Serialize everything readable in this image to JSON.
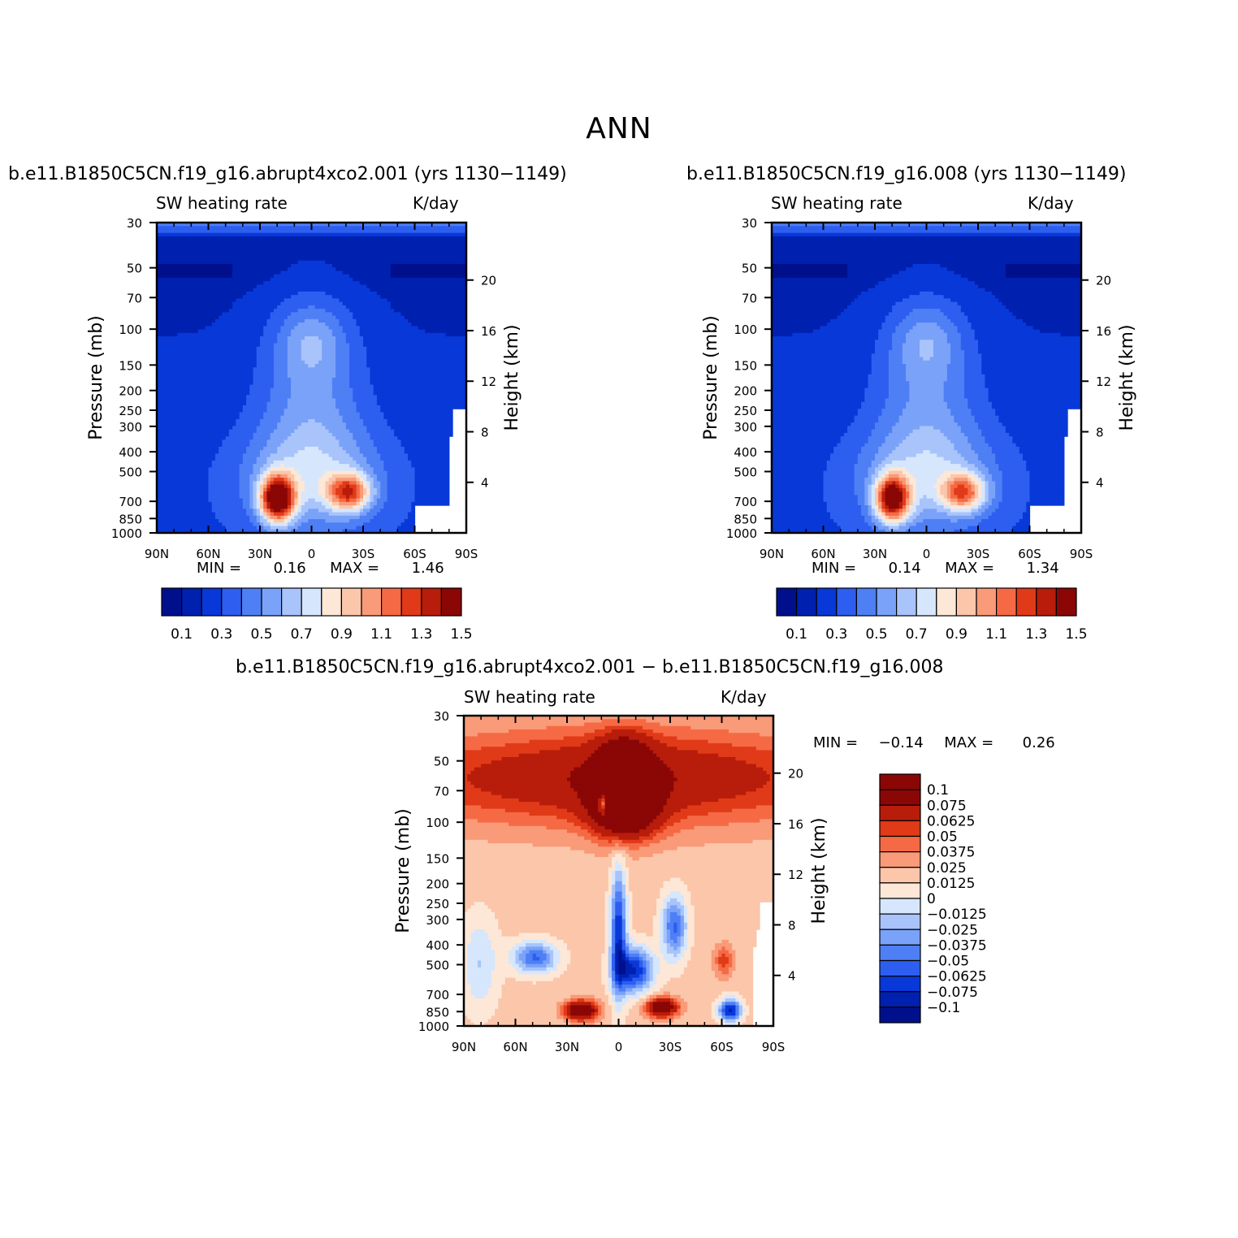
{
  "figure": {
    "title": "ANN"
  },
  "chart_data": [
    {
      "type": "heatmap",
      "title": "b.e11.B1850C5CN.f19_g16.abrupt4xco2.001 (yrs 1130−1149)",
      "left_subtitle": "SW heating rate",
      "right_subtitle": "K/day",
      "ylabel": "Pressure (mb)",
      "right_ylabel": "Height (km)",
      "x_ticks": [
        "90N",
        "60N",
        "30N",
        "0",
        "30S",
        "60S",
        "90S"
      ],
      "y_ticks": [
        "30",
        "50",
        "70",
        "100",
        "150",
        "200",
        "250",
        "300",
        "400",
        "500",
        "700",
        "850",
        "1000"
      ],
      "right_ticks": [
        "20",
        "16",
        "12",
        "8",
        "4"
      ],
      "min_label": "MIN =",
      "min_value": "0.16",
      "max_label": "MAX =",
      "max_value": "1.46",
      "colorbar_labels": [
        "0.1",
        "0.3",
        "0.5",
        "0.7",
        "0.9",
        "1.1",
        "1.3",
        "1.5"
      ],
      "levels": [
        0.1,
        0.2,
        0.3,
        0.4,
        0.5,
        0.6,
        0.7,
        0.8,
        0.9,
        1.0,
        1.1,
        1.2,
        1.3,
        1.4,
        1.5
      ],
      "colors": [
        "#00108c",
        "#0020b0",
        "#0838d8",
        "#2d5ef0",
        "#4e7ff5",
        "#7aa2f8",
        "#a8c4fb",
        "#d6e7fd",
        "#fde7d6",
        "#fbc6aa",
        "#f99a78",
        "#f56a44",
        "#e03a18",
        "#b81c0a",
        "#8a0706"
      ]
    },
    {
      "type": "heatmap",
      "title": "b.e11.B1850C5CN.f19_g16.008 (yrs 1130−1149)",
      "left_subtitle": "SW heating rate",
      "right_subtitle": "K/day",
      "ylabel": "Pressure (mb)",
      "right_ylabel": "Height (km)",
      "x_ticks": [
        "90N",
        "60N",
        "30N",
        "0",
        "30S",
        "60S",
        "90S"
      ],
      "y_ticks": [
        "30",
        "50",
        "70",
        "100",
        "150",
        "200",
        "250",
        "300",
        "400",
        "500",
        "700",
        "850",
        "1000"
      ],
      "right_ticks": [
        "20",
        "16",
        "12",
        "8",
        "4"
      ],
      "min_label": "MIN =",
      "min_value": "0.14",
      "max_label": "MAX =",
      "max_value": "1.34",
      "colorbar_labels": [
        "0.1",
        "0.3",
        "0.5",
        "0.7",
        "0.9",
        "1.1",
        "1.3",
        "1.5"
      ],
      "levels": [
        0.1,
        0.2,
        0.3,
        0.4,
        0.5,
        0.6,
        0.7,
        0.8,
        0.9,
        1.0,
        1.1,
        1.2,
        1.3,
        1.4,
        1.5
      ],
      "colors": [
        "#00108c",
        "#0020b0",
        "#0838d8",
        "#2d5ef0",
        "#4e7ff5",
        "#7aa2f8",
        "#a8c4fb",
        "#d6e7fd",
        "#fde7d6",
        "#fbc6aa",
        "#f99a78",
        "#f56a44",
        "#e03a18",
        "#b81c0a",
        "#8a0706"
      ]
    },
    {
      "type": "heatmap",
      "title": "b.e11.B1850C5CN.f19_g16.abrupt4xco2.001 − b.e11.B1850C5CN.f19_g16.008",
      "left_subtitle": "SW heating rate",
      "right_subtitle": "K/day",
      "ylabel": "Pressure (mb)",
      "right_ylabel": "Height (km)",
      "x_ticks": [
        "90N",
        "60N",
        "30N",
        "0",
        "30S",
        "60S",
        "90S"
      ],
      "y_ticks": [
        "30",
        "50",
        "70",
        "100",
        "150",
        "200",
        "250",
        "300",
        "400",
        "500",
        "700",
        "850",
        "1000"
      ],
      "right_ticks": [
        "20",
        "16",
        "12",
        "8",
        "4"
      ],
      "min_label": "MIN =",
      "min_value": "−0.14",
      "max_label": "MAX =",
      "max_value": "0.26",
      "colorbar_labels": [
        "0.1",
        "0.075",
        "0.0625",
        "0.05",
        "0.0375",
        "0.025",
        "0.0125",
        "0",
        "−0.0125",
        "−0.025",
        "−0.0375",
        "−0.05",
        "−0.0625",
        "−0.075",
        "−0.1"
      ],
      "levels": [
        0.1,
        0.075,
        0.0625,
        0.05,
        0.0375,
        0.025,
        0.0125,
        0,
        -0.0125,
        -0.025,
        -0.0375,
        -0.05,
        -0.0625,
        -0.075,
        -0.1
      ],
      "colors": [
        "#8a0706",
        "#b81c0a",
        "#e03a18",
        "#f56a44",
        "#f99a78",
        "#fbc6aa",
        "#fde7d6",
        "#d6e7fd",
        "#a8c4fb",
        "#7aa2f8",
        "#4e7ff5",
        "#2d5ef0",
        "#0838d8",
        "#0020b0",
        "#00108c"
      ]
    }
  ]
}
